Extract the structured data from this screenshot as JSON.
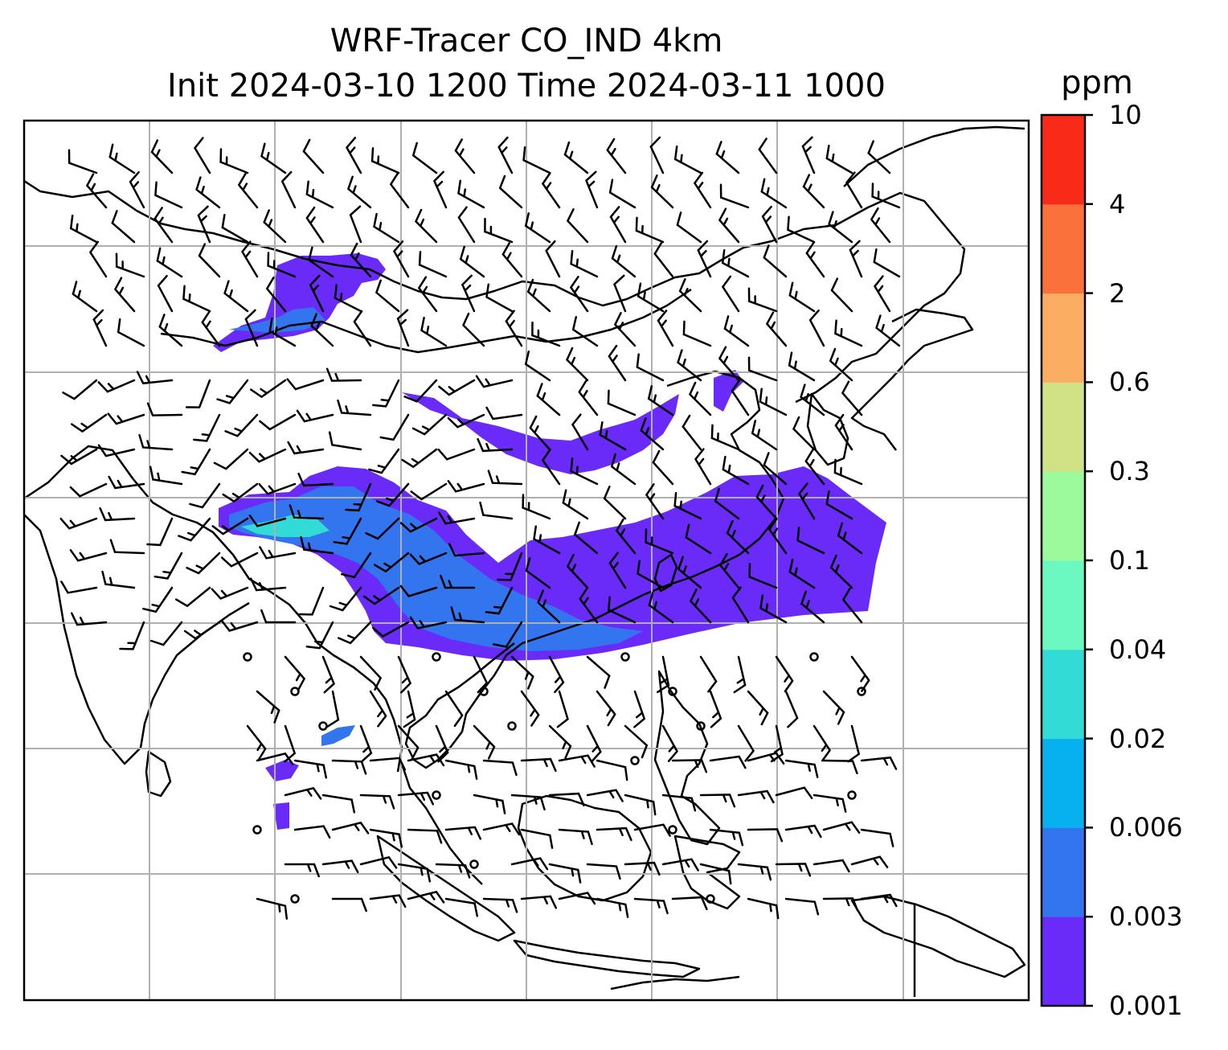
{
  "figure": {
    "title_line1": "WRF-Tracer CO_IND 4km",
    "title_line2": "Init 2024-03-10 1200 Time 2024-03-11 1000"
  },
  "colorbar": {
    "unit": "ppm",
    "levels": [
      "0.001",
      "0.003",
      "0.006",
      "0.02",
      "0.04",
      "0.1",
      "0.3",
      "0.6",
      "2",
      "4",
      "10"
    ],
    "colors": [
      "#6a2af7",
      "#3275ee",
      "#07b0ee",
      "#33dbd6",
      "#6cf9c1",
      "#9cf99c",
      "#d0e285",
      "#fbae61",
      "#fb713b",
      "#f92b18"
    ]
  },
  "map": {
    "coastline_color": "#000000",
    "gridline_color": "#b0b0b0",
    "wind_barb_color": "#000000",
    "tracer_field_colors": [
      "#6a2af7",
      "#3275ee",
      "#33dbd6"
    ]
  }
}
